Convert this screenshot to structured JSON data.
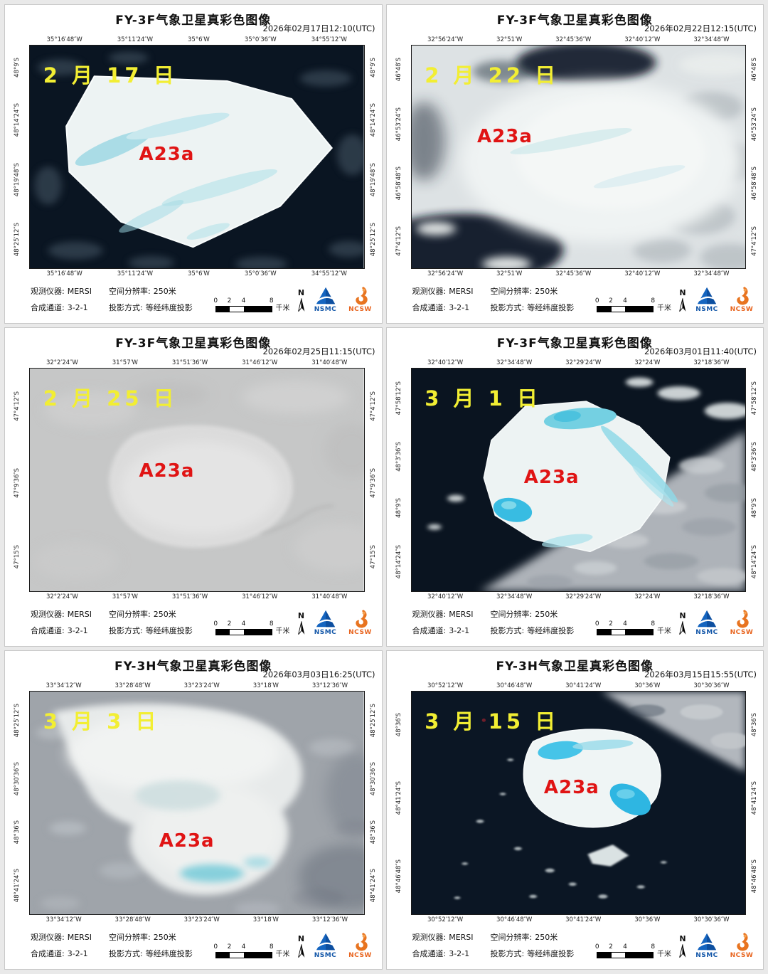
{
  "common": {
    "iceberg_label": "A23a",
    "info": {
      "instrument_label": "观测仪器:",
      "instrument_value": "MERSI",
      "resolution_label": "空间分辨率:",
      "resolution_value": "250米",
      "channels_label": "合成通道:",
      "channels_value": "3-2-1",
      "projection_label": "投影方式:",
      "projection_value": "等经纬度投影"
    },
    "scalebar": {
      "ticks": [
        "0",
        "2",
        "4",
        "8"
      ],
      "unit": "千米"
    },
    "north_label": "N",
    "logos": {
      "nsmc": "NSMC",
      "ncsw": "NCSW"
    },
    "colors": {
      "date_label_yellow": "#f2ee33",
      "iceberg_label_red": "#e01414",
      "ocean_dark": "#0b1624",
      "cloud_gray": "#c6c7c7",
      "melt_pond_cyan": "#46c4e8",
      "nsmc_blue": "#1565c0",
      "ncsw_orange": "#e87420"
    }
  },
  "panels": [
    {
      "title": "FY-3F气象卫星真彩色图像",
      "timestamp": "2026年02月17日12:10(UTC)",
      "date_label": "2 月 17 日",
      "lon_labels": [
        "35°16′48″W",
        "35°11′24″W",
        "35°6′W",
        "35°0′36″W",
        "34°55′12″W"
      ],
      "lat_labels": [
        "48°9′S",
        "48°14′24″S",
        "48°19′48″S",
        "48°25′12″S"
      ]
    },
    {
      "title": "FY-3F气象卫星真彩色图像",
      "timestamp": "2026年02月22日12:15(UTC)",
      "date_label": "2 月 22 日",
      "lon_labels": [
        "32°56′24″W",
        "32°51′W",
        "32°45′36″W",
        "32°40′12″W",
        "32°34′48″W"
      ],
      "lat_labels": [
        "46°48′S",
        "46°53′24″S",
        "46°58′48″S",
        "47°4′12″S"
      ]
    },
    {
      "title": "FY-3F气象卫星真彩色图像",
      "timestamp": "2026年02月25日11:15(UTC)",
      "date_label": "2 月 25 日",
      "lon_labels": [
        "32°2′24″W",
        "31°57′W",
        "31°51′36″W",
        "31°46′12″W",
        "31°40′48″W"
      ],
      "lat_labels": [
        "47°4′12″S",
        "47°9′36″S",
        "47°15′S"
      ]
    },
    {
      "title": "FY-3F气象卫星真彩色图像",
      "timestamp": "2026年03月01日11:40(UTC)",
      "date_label": "3 月 1 日",
      "lon_labels": [
        "32°40′12″W",
        "32°34′48″W",
        "32°29′24″W",
        "32°24′W",
        "32°18′36″W"
      ],
      "lat_labels": [
        "47°58′12″S",
        "48°3′36″S",
        "48°9′S",
        "48°14′24″S"
      ]
    },
    {
      "title": "FY-3H气象卫星真彩色图像",
      "timestamp": "2026年03月03日16:25(UTC)",
      "date_label": "3 月 3 日",
      "lon_labels": [
        "33°34′12″W",
        "33°28′48″W",
        "33°23′24″W",
        "33°18′W",
        "33°12′36″W"
      ],
      "lat_labels": [
        "48°25′12″S",
        "48°30′36″S",
        "48°36′S",
        "48°41′24″S"
      ]
    },
    {
      "title": "FY-3H气象卫星真彩色图像",
      "timestamp": "2026年03月15日15:55(UTC)",
      "date_label": "3 月 15 日",
      "lon_labels": [
        "30°52′12″W",
        "30°46′48″W",
        "30°41′24″W",
        "30°36′W",
        "30°30′36″W"
      ],
      "lat_labels": [
        "48°36′S",
        "48°41′24″S",
        "48°46′48″S"
      ]
    }
  ]
}
